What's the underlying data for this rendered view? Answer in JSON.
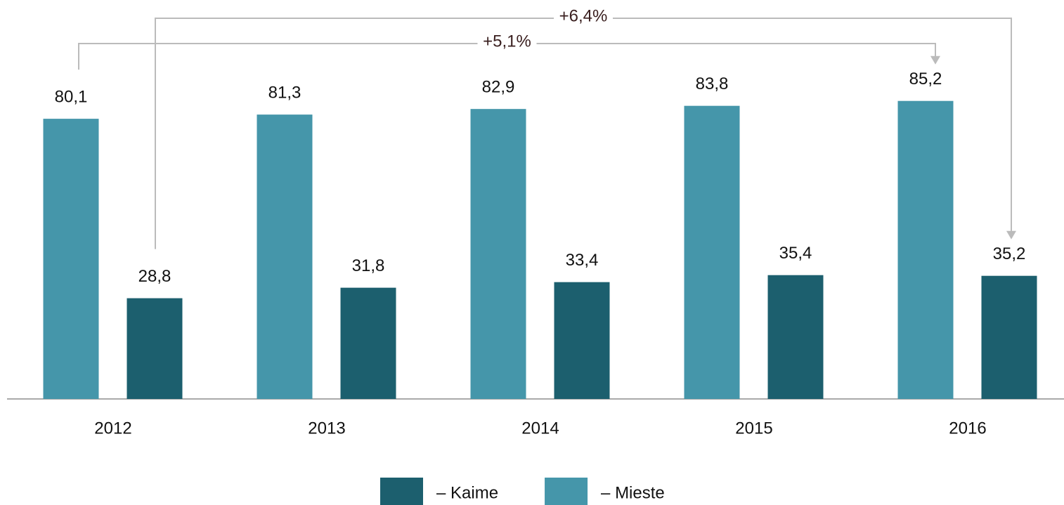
{
  "chart_data": {
    "type": "bar",
    "categories": [
      "2012",
      "2013",
      "2014",
      "2015",
      "2016"
    ],
    "series": [
      {
        "name": "– Mieste",
        "color": "#4596aa",
        "values": [
          80.1,
          81.3,
          82.9,
          83.8,
          85.2
        ],
        "value_labels": [
          "80,1",
          "81,3",
          "82,9",
          "83,8",
          "85,2"
        ]
      },
      {
        "name": "– Kaime",
        "color": "#1c5f6e",
        "values": [
          28.8,
          31.8,
          33.4,
          35.4,
          35.2
        ],
        "value_labels": [
          "28,8",
          "31,8",
          "33,4",
          "35,4",
          "35,2"
        ]
      }
    ],
    "ylim": [
      0,
      100
    ],
    "annotations": [
      "+5,1%",
      "+6,4%"
    ]
  }
}
